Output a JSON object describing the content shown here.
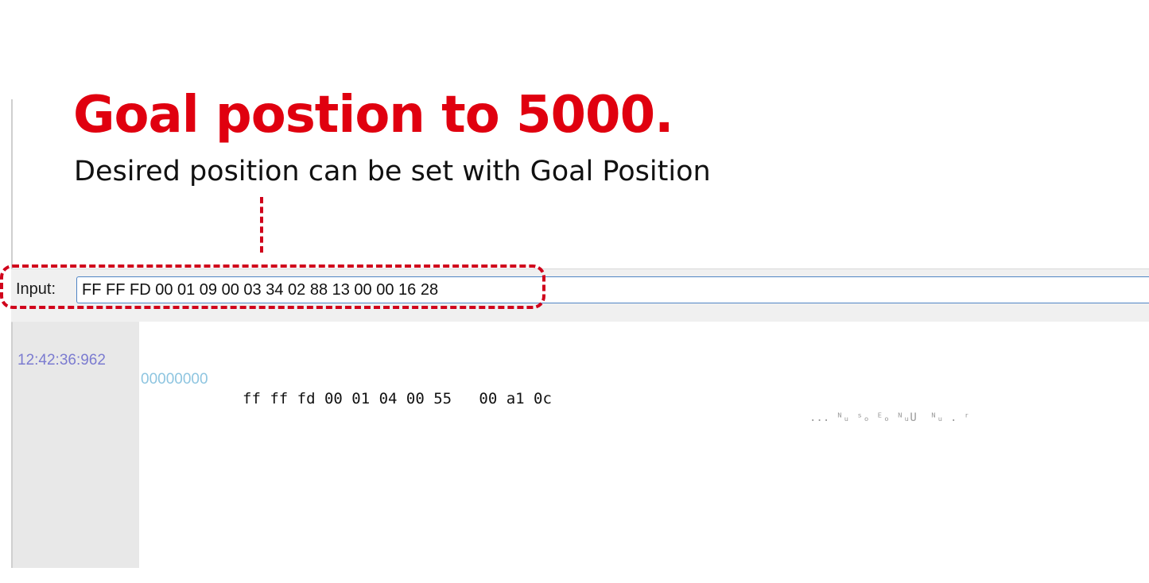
{
  "annotation": {
    "headline": "Goal postion to 5000.",
    "subline": "Desired position can be set with Goal Position"
  },
  "input": {
    "label": "Input:",
    "value": "FF FF FD 00 01 09 00 03 34 02 88 13 00 00 16 28"
  },
  "log": {
    "rows": [
      {
        "time": "12:42:36:962",
        "offset": "00000000",
        "hex": "ff ff fd 00 01 04 00 55   00 a1 0c",
        "ascii": "... ᴺᵤ ˢₒ ᴱₒ ᴺᵤU  ᴺᵤ . ʳ"
      }
    ]
  },
  "colors": {
    "headline": "#e0000f",
    "highlight": "#d0021b",
    "time": "#7b7bd0",
    "offset": "#8ec5e0",
    "input_border": "#4f84c4"
  }
}
